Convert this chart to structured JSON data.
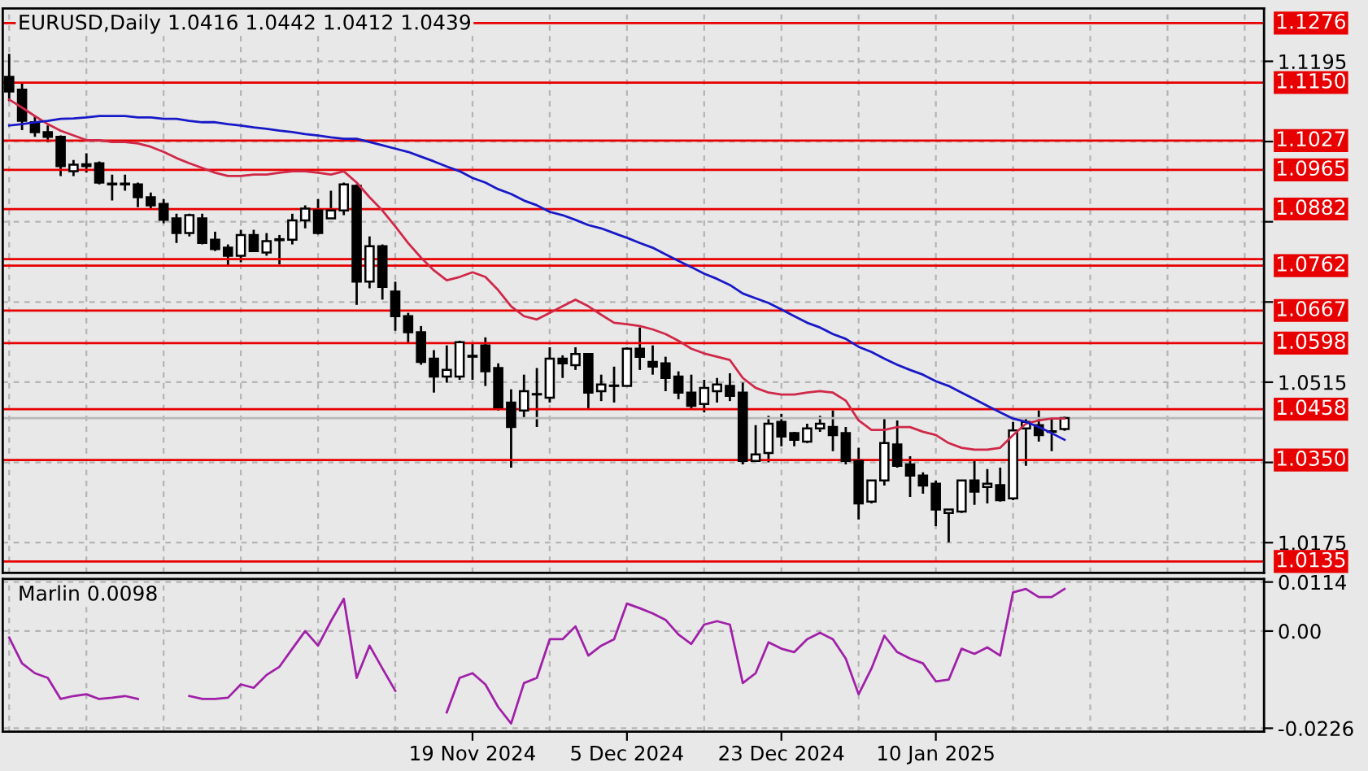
{
  "chart_data": [
    {
      "type": "candlestick",
      "title": "EURUSD,Daily 1.0416 1.0442 1.0412 1.0439",
      "categories": [
        null,
        null,
        null,
        null,
        null,
        null,
        null,
        null,
        null,
        null,
        null,
        null,
        null,
        null,
        null,
        null,
        null,
        null,
        null,
        null,
        null,
        null,
        null,
        null,
        null,
        null,
        null,
        null,
        null,
        null,
        null,
        null,
        null,
        null,
        null,
        null,
        null,
        null,
        null,
        null,
        null,
        null,
        null,
        null,
        null,
        null,
        null,
        null,
        null,
        null,
        null,
        null,
        null,
        null,
        null,
        null,
        null,
        null,
        null,
        null,
        null,
        null,
        null,
        null,
        null,
        null,
        null,
        null,
        null,
        null,
        null,
        null,
        null,
        null,
        null,
        null,
        null,
        null,
        null,
        null,
        null,
        null,
        null,
        null,
        null,
        null,
        null,
        null,
        null,
        null,
        null,
        null,
        null,
        null,
        null,
        null,
        null,
        null
      ],
      "color": "#000000",
      "ohlc": [
        [
          1.1162,
          1.1211,
          1.1111,
          1.1131
        ],
        [
          1.1135,
          1.1148,
          1.1049,
          1.1069
        ],
        [
          1.1066,
          1.108,
          1.1035,
          1.1045
        ],
        [
          1.1045,
          1.1059,
          1.1024,
          1.1035
        ],
        [
          1.1035,
          1.1038,
          1.0952,
          1.0973
        ],
        [
          1.0962,
          1.0986,
          1.0952,
          1.0976
        ],
        [
          1.0977,
          1.1,
          1.0959,
          1.0973
        ],
        [
          1.0979,
          1.0983,
          1.0934,
          1.0938
        ],
        [
          1.0936,
          1.0955,
          1.09,
          1.0934
        ],
        [
          1.0936,
          1.0955,
          1.0921,
          1.0934
        ],
        [
          1.0934,
          1.0938,
          1.0886,
          1.0907
        ],
        [
          1.0907,
          1.0917,
          1.0883,
          1.089
        ],
        [
          1.0893,
          1.0903,
          1.0852,
          1.0859
        ],
        [
          1.0862,
          1.0872,
          1.081,
          1.0831
        ],
        [
          1.0831,
          1.0872,
          1.0824,
          1.0869
        ],
        [
          1.0862,
          1.0872,
          1.0807,
          1.081
        ],
        [
          1.0817,
          1.0834,
          1.0793,
          1.0797
        ],
        [
          1.08,
          1.0807,
          1.0762,
          1.0783
        ],
        [
          1.0783,
          1.0838,
          1.0769,
          1.0827
        ],
        [
          1.0827,
          1.0838,
          1.0793,
          1.0793
        ],
        [
          1.079,
          1.0831,
          1.0783,
          1.0814
        ],
        [
          1.0816,
          1.0827,
          1.0765,
          1.0818
        ],
        [
          1.0817,
          1.0872,
          1.0807,
          1.0858
        ],
        [
          1.0858,
          1.089,
          1.0841,
          1.0883
        ],
        [
          1.0879,
          1.0903,
          1.0828,
          1.0831
        ],
        [
          1.0862,
          1.0921,
          1.0862,
          1.0879
        ],
        [
          1.0879,
          1.0938,
          1.0869,
          1.0934
        ],
        [
          1.0931,
          1.0934,
          1.0679,
          1.0728
        ],
        [
          1.0728,
          1.0824,
          1.0714,
          1.0803
        ],
        [
          1.0803,
          1.0807,
          1.069,
          1.0717
        ],
        [
          1.0707,
          1.0728,
          1.0624,
          1.0655
        ],
        [
          1.0655,
          1.0662,
          1.0596,
          1.0621
        ],
        [
          1.0621,
          1.0634,
          1.0552,
          1.0558
        ],
        [
          1.0565,
          1.0583,
          1.0493,
          1.0527
        ],
        [
          1.0527,
          1.0593,
          1.0514,
          1.0541
        ],
        [
          1.0527,
          1.0603,
          1.052,
          1.06
        ],
        [
          1.0571,
          1.0596,
          1.052,
          1.0569
        ],
        [
          1.0593,
          1.061,
          1.0507,
          1.0538
        ],
        [
          1.0545,
          1.0555,
          1.0455,
          1.0462
        ],
        [
          1.0472,
          1.05,
          1.0334,
          1.042
        ],
        [
          1.0455,
          1.0531,
          1.0438,
          1.0496
        ],
        [
          1.0489,
          1.0545,
          1.042,
          1.049
        ],
        [
          1.0482,
          1.0589,
          1.0472,
          1.0565
        ],
        [
          1.0565,
          1.0572,
          1.0524,
          1.0555
        ],
        [
          1.0551,
          1.0589,
          1.0541,
          1.0575
        ],
        [
          1.0575,
          1.0575,
          1.0458,
          1.0493
        ],
        [
          1.0496,
          1.0531,
          1.0475,
          1.051
        ],
        [
          1.0507,
          1.0548,
          1.0472,
          1.0508
        ],
        [
          1.0507,
          1.0589,
          1.0507,
          1.0586
        ],
        [
          1.0586,
          1.0631,
          1.0541,
          1.0569
        ],
        [
          1.0558,
          1.0593,
          1.0531,
          1.0548
        ],
        [
          1.0555,
          1.0569,
          1.0496,
          1.0524
        ],
        [
          1.0527,
          1.0538,
          1.0479,
          1.0493
        ],
        [
          1.0493,
          1.0531,
          1.0458,
          1.0465
        ],
        [
          1.0469,
          1.052,
          1.0451,
          1.0503
        ],
        [
          1.0496,
          1.0524,
          1.0472,
          1.051
        ],
        [
          1.0507,
          1.0534,
          1.0475,
          1.0486
        ],
        [
          1.0493,
          1.0514,
          1.0341,
          1.0348
        ],
        [
          1.0348,
          1.0424,
          1.0348,
          1.0362
        ],
        [
          1.0365,
          1.0444,
          1.0345,
          1.0427
        ],
        [
          1.0431,
          1.0448,
          1.0379,
          1.04
        ],
        [
          1.0407,
          1.041,
          1.0379,
          1.0393
        ],
        [
          1.0389,
          1.0427,
          1.0386,
          1.0417
        ],
        [
          1.0417,
          1.0444,
          1.041,
          1.0427
        ],
        [
          1.042,
          1.0455,
          1.0369,
          1.0403
        ],
        [
          1.0407,
          1.042,
          1.0341,
          1.0348
        ],
        [
          1.0348,
          1.0376,
          1.0224,
          1.0258
        ],
        [
          1.0262,
          1.0307,
          1.0258,
          1.0307
        ],
        [
          1.0307,
          1.0438,
          1.0296,
          1.0386
        ],
        [
          1.0383,
          1.0434,
          1.0334,
          1.0338
        ],
        [
          1.0341,
          1.0358,
          1.0272,
          1.0317
        ],
        [
          1.0317,
          1.0324,
          1.0279,
          1.0296
        ],
        [
          1.03,
          1.0307,
          1.021,
          1.0245
        ],
        [
          1.0238,
          1.0245,
          1.0176,
          1.0245
        ],
        [
          1.0241,
          1.0307,
          1.0238,
          1.0307
        ],
        [
          1.0307,
          1.0351,
          1.0255,
          1.0283
        ],
        [
          1.0293,
          1.0331,
          1.0258,
          1.03
        ],
        [
          1.0297,
          1.0334,
          1.0262,
          1.0265
        ],
        [
          1.0269,
          1.0431,
          1.0265,
          1.0413
        ],
        [
          1.0417,
          1.0438,
          1.0338,
          1.0431
        ],
        [
          1.0424,
          1.0455,
          1.0389,
          1.0403
        ],
        [
          1.041,
          1.0438,
          1.0369,
          1.0411
        ],
        [
          1.0416,
          1.0442,
          1.0412,
          1.0439
        ],
        null,
        null,
        null,
        null,
        null,
        null,
        null,
        null,
        null,
        null,
        null,
        null,
        null,
        null,
        null
      ],
      "series": [
        {
          "type": "line",
          "color": "#d02848",
          "values": [
            1.1114,
            1.1097,
            1.1079,
            1.1062,
            1.1048,
            1.1038,
            1.1028,
            1.1028,
            1.1024,
            1.1024,
            1.1021,
            1.1014,
            1.1003,
            1.099,
            1.0979,
            1.0969,
            1.0959,
            1.0952,
            1.0952,
            1.0955,
            1.0955,
            1.0959,
            1.0962,
            1.0962,
            1.0959,
            1.0955,
            1.0962,
            1.0938,
            1.0907,
            1.0879,
            1.0845,
            1.081,
            1.0779,
            1.0752,
            1.0731,
            1.0738,
            1.0748,
            1.0738,
            1.071,
            1.0676,
            1.0655,
            1.0648,
            1.0662,
            1.0676,
            1.069,
            1.0676,
            1.0658,
            1.0641,
            1.0638,
            1.0634,
            1.0627,
            1.0617,
            1.0603,
            1.0586,
            1.0576,
            1.0569,
            1.0562,
            1.0524,
            1.0503,
            1.0493,
            1.0489,
            1.0489,
            1.0493,
            1.0496,
            1.0493,
            1.0476,
            1.0434,
            1.0414,
            1.0414,
            1.042,
            1.042,
            1.041,
            1.0403,
            1.0386,
            1.0376,
            1.0372,
            1.0372,
            1.0376,
            1.0403,
            1.0427,
            1.0434,
            1.0438,
            1.0438,
            null,
            null,
            null,
            null,
            null,
            null,
            null,
            null,
            null,
            null,
            null,
            null,
            null,
            null,
            null
          ]
        },
        {
          "type": "line",
          "color": "#1818c8",
          "values": [
            1.1059,
            1.1062,
            1.1066,
            1.1069,
            1.1073,
            1.1074,
            1.1076,
            1.1079,
            1.1079,
            1.1079,
            1.1076,
            1.1076,
            1.1073,
            1.1073,
            1.1069,
            1.1066,
            1.1066,
            1.1062,
            1.1059,
            1.1055,
            1.1052,
            1.1048,
            1.1045,
            1.1041,
            1.1038,
            1.1034,
            1.1031,
            1.1031,
            1.1024,
            1.1017,
            1.101,
            1.1003,
            1.0993,
            1.0983,
            1.0972,
            1.0962,
            1.0948,
            1.0938,
            1.0924,
            1.0914,
            1.09,
            1.089,
            1.0876,
            1.0869,
            1.0859,
            1.0848,
            1.0841,
            1.0831,
            1.0821,
            1.081,
            1.08,
            1.0786,
            1.0772,
            1.0759,
            1.0745,
            1.0734,
            1.0721,
            1.0703,
            1.0693,
            1.0683,
            1.0669,
            1.0655,
            1.0641,
            1.0631,
            1.0617,
            1.0607,
            1.059,
            1.0579,
            1.0565,
            1.0552,
            1.0541,
            1.0531,
            1.0517,
            1.0507,
            1.0493,
            1.0479,
            1.0465,
            1.0451,
            1.0438,
            1.0431,
            1.042,
            1.0407,
            1.0393,
            null,
            null,
            null,
            null,
            null,
            null,
            null,
            null,
            null,
            null,
            null,
            null,
            null,
            null,
            null
          ]
        }
      ],
      "ylim": [
        1.0111,
        1.1307
      ],
      "yticks": [
        1.1195,
        {
          "value": 1.1025,
          "label": null
        },
        {
          "value": 1.0855,
          "label": null
        },
        {
          "value": 1.0685,
          "label": null
        },
        1.0515,
        {
          "value": 1.0345,
          "label": null
        },
        1.0175
      ],
      "ref_lines": [
        {
          "axis": "y",
          "value": 1.1276,
          "label": "1.1276",
          "color": "#e80000"
        },
        {
          "axis": "y",
          "value": 1.115,
          "label": "1.1150",
          "color": "#e80000"
        },
        {
          "axis": "y",
          "value": 1.1027,
          "label": "1.1027",
          "color": "#e80000"
        },
        {
          "axis": "y",
          "value": 1.0965,
          "label": "1.0965",
          "color": "#e80000"
        },
        {
          "axis": "y",
          "value": 1.0882,
          "label": "1.0882",
          "color": "#e80000"
        },
        {
          "axis": "y",
          "value": 1.0776,
          "label": null,
          "color": "#e80000"
        },
        {
          "axis": "y",
          "value": 1.0762,
          "label": "1.0762",
          "color": "#e80000"
        },
        {
          "axis": "y",
          "value": 1.0667,
          "label": "1.0667",
          "color": "#e80000"
        },
        {
          "axis": "y",
          "value": 1.0598,
          "label": "1.0598",
          "color": "#e80000"
        },
        {
          "axis": "y",
          "value": 1.0458,
          "label": "1.0458",
          "color": "#e80000"
        },
        {
          "axis": "y",
          "value": 1.0439,
          "label": null,
          "color": "#b8b8b8"
        },
        {
          "axis": "y",
          "value": 1.035,
          "label": "1.0350",
          "color": "#e80000"
        },
        {
          "axis": "y",
          "value": 1.0135,
          "label": "1.0135",
          "color": "#e80000"
        }
      ],
      "grid": true
    },
    {
      "type": "line",
      "title": "Marlin 0.0098",
      "categories": [
        null,
        null,
        null,
        null,
        null,
        null,
        null,
        null,
        null,
        null,
        null,
        null,
        null,
        null,
        null,
        null,
        null,
        null,
        null,
        null,
        null,
        null,
        null,
        null,
        null,
        null,
        null,
        null,
        null,
        null,
        null,
        null,
        null,
        null,
        null,
        null,
        "19 Nov 2024",
        null,
        null,
        null,
        null,
        null,
        null,
        null,
        null,
        null,
        null,
        null,
        "5 Dec 2024",
        null,
        null,
        null,
        null,
        null,
        null,
        null,
        null,
        null,
        null,
        null,
        "23 Dec 2024",
        null,
        null,
        null,
        null,
        null,
        null,
        null,
        null,
        null,
        null,
        null,
        "10 Jan 2025",
        null,
        null,
        null,
        null,
        null,
        null,
        null,
        null,
        null,
        null,
        null,
        null,
        null,
        null,
        null,
        null,
        null,
        null,
        null,
        null,
        null,
        null,
        null,
        null,
        null
      ],
      "series": [
        {
          "color": "#a020a8",
          "values": [
            -0.0015,
            -0.0075,
            -0.0098,
            -0.0109,
            -0.0158,
            -0.0151,
            -0.0147,
            -0.0158,
            -0.0155,
            -0.0151,
            -0.0158,
            null,
            null,
            null,
            -0.0151,
            -0.0158,
            -0.0158,
            -0.0155,
            -0.0124,
            -0.0132,
            -0.0102,
            -0.0083,
            -0.0041,
            0,
            -0.0034,
            0.0023,
            0.0075,
            -0.0109,
            -0.0034,
            -0.0087,
            -0.0139,
            null,
            null,
            null,
            -0.0189,
            -0.0109,
            -0.0098,
            -0.0124,
            -0.0177,
            -0.0215,
            -0.0121,
            -0.0109,
            -0.0019,
            -0.0019,
            0.0011,
            -0.0057,
            -0.0034,
            -0.0019,
            0.0064,
            0.0053,
            0.0041,
            0.0026,
            -0.0008,
            -0.003,
            0.0015,
            0.0023,
            0.0015,
            -0.0121,
            -0.0098,
            -0.0026,
            -0.0041,
            -0.0049,
            -0.0019,
            -0.0004,
            -0.0019,
            -0.0064,
            -0.0147,
            -0.0087,
            -0.0011,
            -0.0049,
            -0.0064,
            -0.0075,
            -0.0117,
            -0.0113,
            -0.0041,
            -0.0053,
            -0.0038,
            -0.0057,
            0.009,
            0.0098,
            0.0079,
            0.0079,
            0.0098,
            null,
            null,
            null,
            null,
            null,
            null,
            null,
            null,
            null,
            null,
            null,
            null,
            null,
            null,
            null
          ]
        }
      ],
      "ylim": [
        -0.0234,
        0.0121
      ],
      "yticks": [
        0.0114,
        {
          "value": 0,
          "label": "0.00"
        },
        -0.0226
      ],
      "grid": true
    }
  ]
}
